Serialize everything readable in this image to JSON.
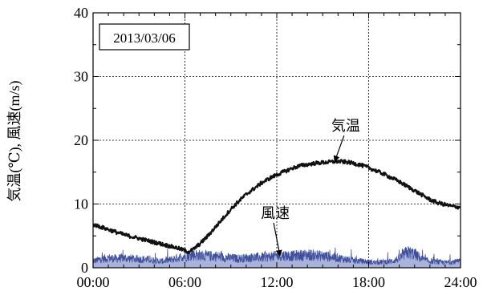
{
  "chart_data": {
    "type": "line",
    "date_label": "2013/03/06",
    "ylabel": "気温(℃), 風速(m/s)",
    "xlabel": "",
    "xlim": [
      0,
      24
    ],
    "ylim": [
      0,
      40
    ],
    "x_ticks": [
      {
        "value": 0,
        "label": "00:00"
      },
      {
        "value": 6,
        "label": "06:00"
      },
      {
        "value": 12,
        "label": "12:00"
      },
      {
        "value": 18,
        "label": "18:00"
      },
      {
        "value": 24,
        "label": "24:00"
      }
    ],
    "y_ticks": [
      {
        "value": 0,
        "label": "0"
      },
      {
        "value": 10,
        "label": "10"
      },
      {
        "value": 20,
        "label": "20"
      },
      {
        "value": 30,
        "label": "30"
      },
      {
        "value": 40,
        "label": "40"
      }
    ],
    "grid": true,
    "series": [
      {
        "name": "気温",
        "color": "#111111",
        "x": [
          0,
          0.5,
          1,
          1.5,
          2,
          2.5,
          3,
          3.5,
          4,
          4.5,
          5,
          5.5,
          6,
          6.2,
          6.5,
          7,
          7.5,
          8,
          8.5,
          9,
          9.5,
          10,
          10.5,
          11,
          11.5,
          12,
          12.5,
          13,
          13.5,
          14,
          14.5,
          15,
          15.5,
          16,
          16.5,
          17,
          17.5,
          18,
          18.5,
          19,
          19.5,
          20,
          20.5,
          21,
          21.5,
          22,
          22.5,
          23,
          23.5,
          24
        ],
        "values": [
          6.8,
          6.4,
          6.0,
          5.6,
          5.2,
          4.9,
          4.6,
          4.3,
          4.0,
          3.7,
          3.4,
          3.1,
          2.7,
          2.5,
          2.8,
          3.8,
          5.0,
          6.4,
          7.8,
          9.2,
          10.4,
          11.5,
          12.4,
          13.3,
          14.0,
          14.6,
          15.1,
          15.6,
          16.0,
          16.2,
          16.4,
          16.5,
          16.6,
          16.7,
          16.6,
          16.4,
          16.1,
          15.7,
          15.2,
          14.7,
          14.1,
          13.5,
          12.8,
          12.1,
          11.4,
          10.7,
          10.2,
          9.9,
          9.6,
          9.5
        ]
      },
      {
        "name": "風速",
        "color": "#3f4f9c",
        "x": [
          0,
          0.5,
          1,
          1.5,
          2,
          2.5,
          3,
          3.5,
          4,
          4.5,
          5,
          5.5,
          6,
          6.5,
          7,
          7.5,
          8,
          8.5,
          9,
          9.5,
          10,
          10.5,
          11,
          11.5,
          12,
          12.5,
          13,
          13.5,
          14,
          14.5,
          15,
          15.5,
          16,
          16.5,
          17,
          17.5,
          18,
          18.5,
          19,
          19.5,
          20,
          20.5,
          21,
          21.5,
          22,
          22.5,
          23,
          23.5,
          24
        ],
        "values": [
          1.0,
          1.3,
          1.5,
          1.4,
          1.5,
          1.4,
          1.3,
          1.3,
          1.1,
          1.0,
          1.2,
          1.5,
          1.8,
          2.0,
          1.9,
          1.8,
          1.8,
          1.6,
          1.5,
          1.4,
          1.5,
          1.6,
          1.6,
          1.7,
          1.8,
          1.9,
          1.8,
          1.9,
          2.0,
          1.9,
          1.8,
          1.7,
          1.5,
          1.3,
          1.1,
          1.0,
          0.9,
          0.8,
          0.9,
          1.0,
          1.4,
          2.4,
          2.1,
          1.3,
          1.0,
          0.9,
          0.8,
          0.9,
          1.0
        ]
      }
    ],
    "annotations": [
      {
        "text": "気温",
        "x": 16.5,
        "y": 21.5,
        "arrow_to": [
          15.8,
          16.8
        ]
      },
      {
        "text": "風速",
        "x": 11.9,
        "y": 7.8,
        "arrow_to": [
          12.2,
          2.0
        ]
      }
    ]
  }
}
